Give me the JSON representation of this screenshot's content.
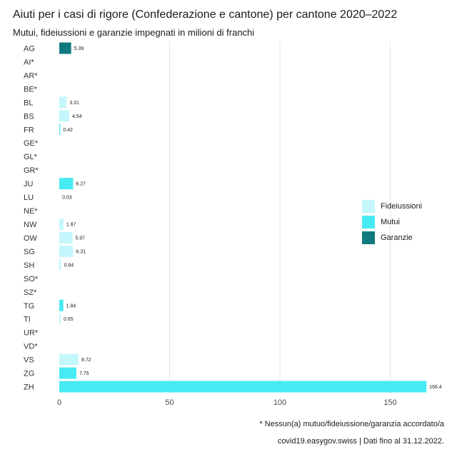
{
  "header": {
    "title": "Aiuti per i casi di rigore (Confederazione e cantone) per cantone 2020–2022",
    "subtitle": "Mutui, fideiussioni e garanzie impegnati in milioni di franchi"
  },
  "footer": {
    "footnote": "* Nessun(a) mutuo/fideiussione/garanzia accordato/a",
    "source": "covid19.easygov.swiss | Dati fino al 31.12.2022."
  },
  "colors": {
    "Fideiussioni": "#c4f7fb",
    "Mutui": "#48eaf3",
    "Garanzie": "#117a7e",
    "grid": "#e6e6e6"
  },
  "chart_data": {
    "type": "bar",
    "orientation": "horizontal",
    "stacked": true,
    "title": "Aiuti per i casi di rigore (Confederazione e cantone) per cantone 2020–2022",
    "subtitle": "Mutui, fideiussioni e garanzie impegnati in milioni di franchi",
    "categories": [
      "AG",
      "AI*",
      "AR*",
      "BE*",
      "BL",
      "BS",
      "FR",
      "GE*",
      "GL*",
      "GR*",
      "JU",
      "LU",
      "NE*",
      "NW",
      "OW",
      "SG",
      "SH",
      "SO*",
      "SZ*",
      "TG",
      "TI",
      "UR*",
      "VD*",
      "VS",
      "ZG",
      "ZH"
    ],
    "series": [
      {
        "name": "Fideiussioni",
        "values": [
          0,
          0,
          0,
          0,
          3.31,
          4.54,
          0,
          0,
          0,
          0,
          0,
          0.03,
          0,
          1.87,
          5.97,
          6.31,
          0.84,
          0,
          0,
          0,
          0.65,
          0,
          0,
          8.72,
          0,
          0
        ]
      },
      {
        "name": "Mutui",
        "values": [
          0,
          0,
          0,
          0,
          0,
          0,
          0.42,
          0,
          0,
          0,
          6.27,
          0,
          0,
          0,
          0,
          0,
          0,
          0,
          0,
          1.84,
          0,
          0,
          0,
          0,
          7.75,
          166.4
        ]
      },
      {
        "name": "Garanzie",
        "values": [
          5.39,
          0,
          0,
          0,
          0,
          0,
          0,
          0,
          0,
          0,
          0,
          0,
          0,
          0,
          0,
          0,
          0,
          0,
          0,
          0,
          0,
          0,
          0,
          0,
          0,
          0
        ]
      }
    ],
    "totals_labels": [
      "5.39",
      "",
      "",
      "",
      "3.31",
      "4.54",
      "0.42",
      "",
      "",
      "",
      "6.27",
      "0.03",
      "",
      "1.87",
      "5.97",
      "6.31",
      "0.84",
      "",
      "",
      "1.84",
      "0.65",
      "",
      "",
      "8.72",
      "7.75",
      "166.4"
    ],
    "xlim": [
      0,
      175
    ],
    "xticks": [
      0,
      50,
      100,
      150
    ],
    "grid": true,
    "legend": [
      "Fideiussioni",
      "Mutui",
      "Garanzie"
    ],
    "legend_position": "right"
  }
}
